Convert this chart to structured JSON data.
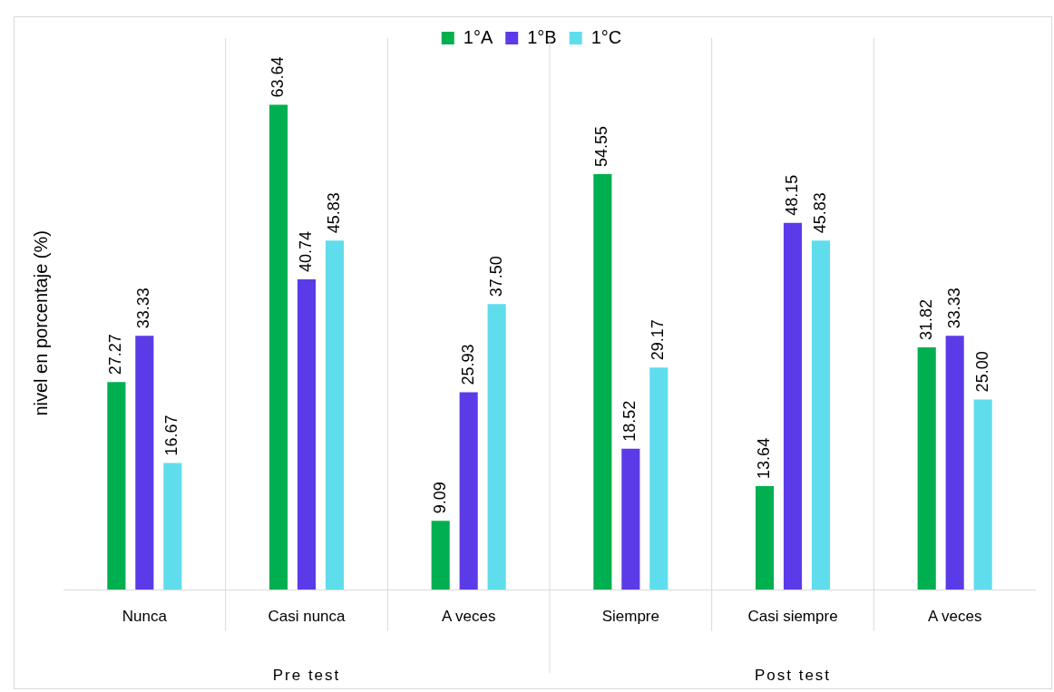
{
  "chart_data": {
    "type": "bar",
    "ylabel": "nivel en porcentaje (%)",
    "categories": [
      "Nunca",
      "Casi nunca",
      "A veces",
      "Siempre",
      "Casi siempre",
      "A veces"
    ],
    "series": [
      {
        "name": "1°A",
        "color": "#00b050",
        "values": [
          27.27,
          63.64,
          9.09,
          54.55,
          13.64,
          31.82
        ],
        "value_labels": [
          "27.27",
          "63.64",
          "9.09",
          "54.55",
          "13.64",
          "31.82"
        ]
      },
      {
        "name": "1°B",
        "color": "#5b3be8",
        "values": [
          33.33,
          40.74,
          25.93,
          18.52,
          48.15,
          33.33
        ],
        "value_labels": [
          "33.33",
          "40.74",
          "25.93",
          "18.52",
          "48.15",
          "33.33"
        ]
      },
      {
        "name": "1°C",
        "color": "#5fdded",
        "values": [
          16.67,
          45.83,
          37.5,
          29.17,
          45.83,
          25.0
        ],
        "value_labels": [
          "16.67",
          "45.83",
          "37.50",
          "29.17",
          "45.83",
          "25.00"
        ]
      }
    ],
    "annotations": [
      "Pre test",
      "Post test"
    ],
    "grid": "x",
    "legend": "top"
  }
}
